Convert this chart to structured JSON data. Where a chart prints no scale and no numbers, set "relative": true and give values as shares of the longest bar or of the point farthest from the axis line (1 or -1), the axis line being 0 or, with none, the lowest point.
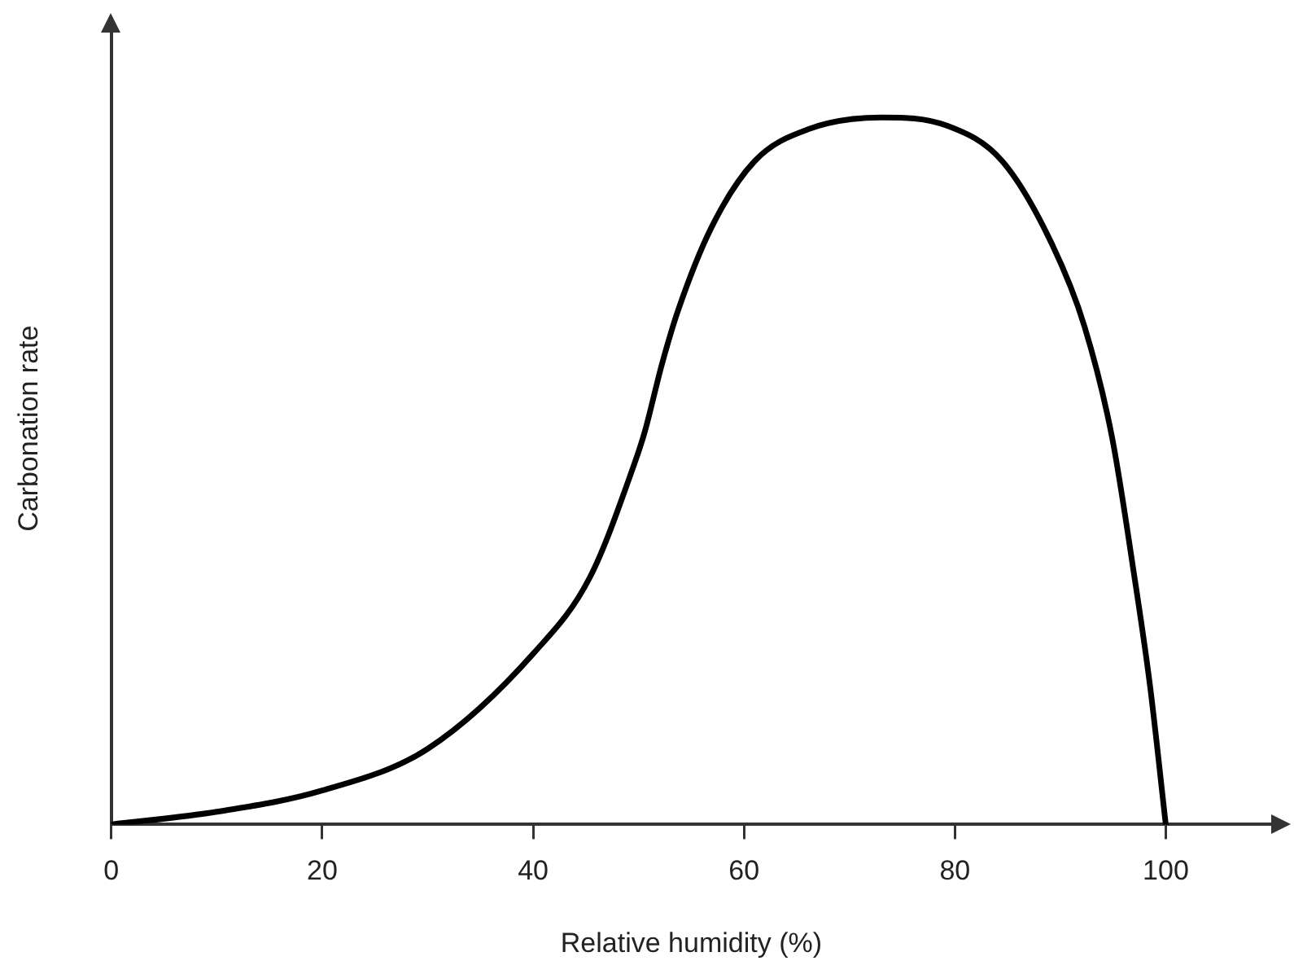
{
  "chart_data": {
    "type": "line",
    "xlabel": "Relative humidity (%)",
    "ylabel": "Carbonation rate",
    "relative": true,
    "xlim": [
      0,
      110
    ],
    "xticks": [
      0,
      20,
      40,
      60,
      80,
      100
    ],
    "grid": false,
    "legend": false,
    "marker": "none",
    "line_style": "solid",
    "series": [
      {
        "color": "#000000",
        "x": [
          0,
          10,
          20,
          30,
          40.1,
          45.4,
          49.6,
          50.6,
          52.2,
          53.75,
          56.9,
          61,
          66.25,
          73,
          79.3,
          84.5,
          89.2,
          92.3,
          94.9,
          97,
          98.5,
          100
        ],
        "values": [
          0,
          0.018,
          0.048,
          0.107,
          0.243,
          0.35,
          0.51,
          0.556,
          0.65,
          0.727,
          0.844,
          0.938,
          0.984,
          1,
          0.988,
          0.938,
          0.821,
          0.704,
          0.548,
          0.353,
          0.197,
          0
        ]
      }
    ]
  }
}
